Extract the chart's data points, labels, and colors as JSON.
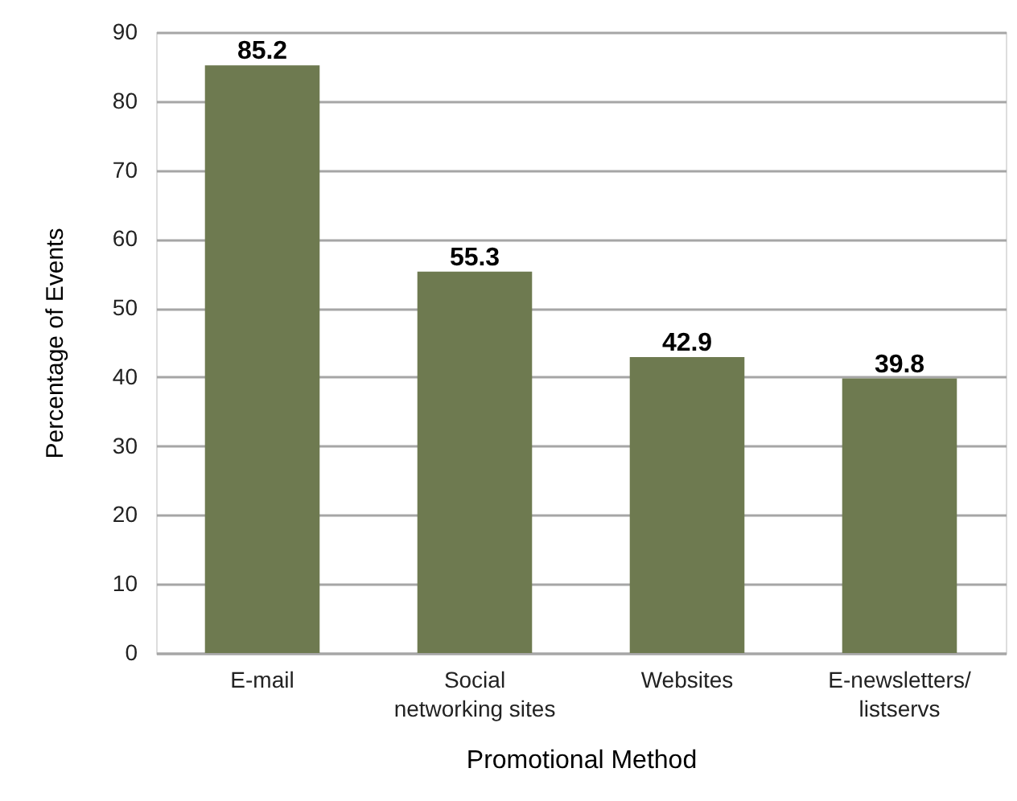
{
  "chart_data": {
    "type": "bar",
    "xlabel": "Promotional Method",
    "ylabel": "Percentage of Events",
    "categories": [
      "E-mail",
      "Social networking sites",
      "Websites",
      "E-newsletters/ listservs"
    ],
    "values": [
      85.2,
      55.3,
      42.9,
      39.8
    ],
    "color": "#6e7a50",
    "ylim": [
      0,
      90
    ],
    "yticks": [
      0,
      10,
      20,
      30,
      40,
      50,
      60,
      70,
      80,
      90
    ],
    "grid": "y",
    "data_labels": true
  }
}
